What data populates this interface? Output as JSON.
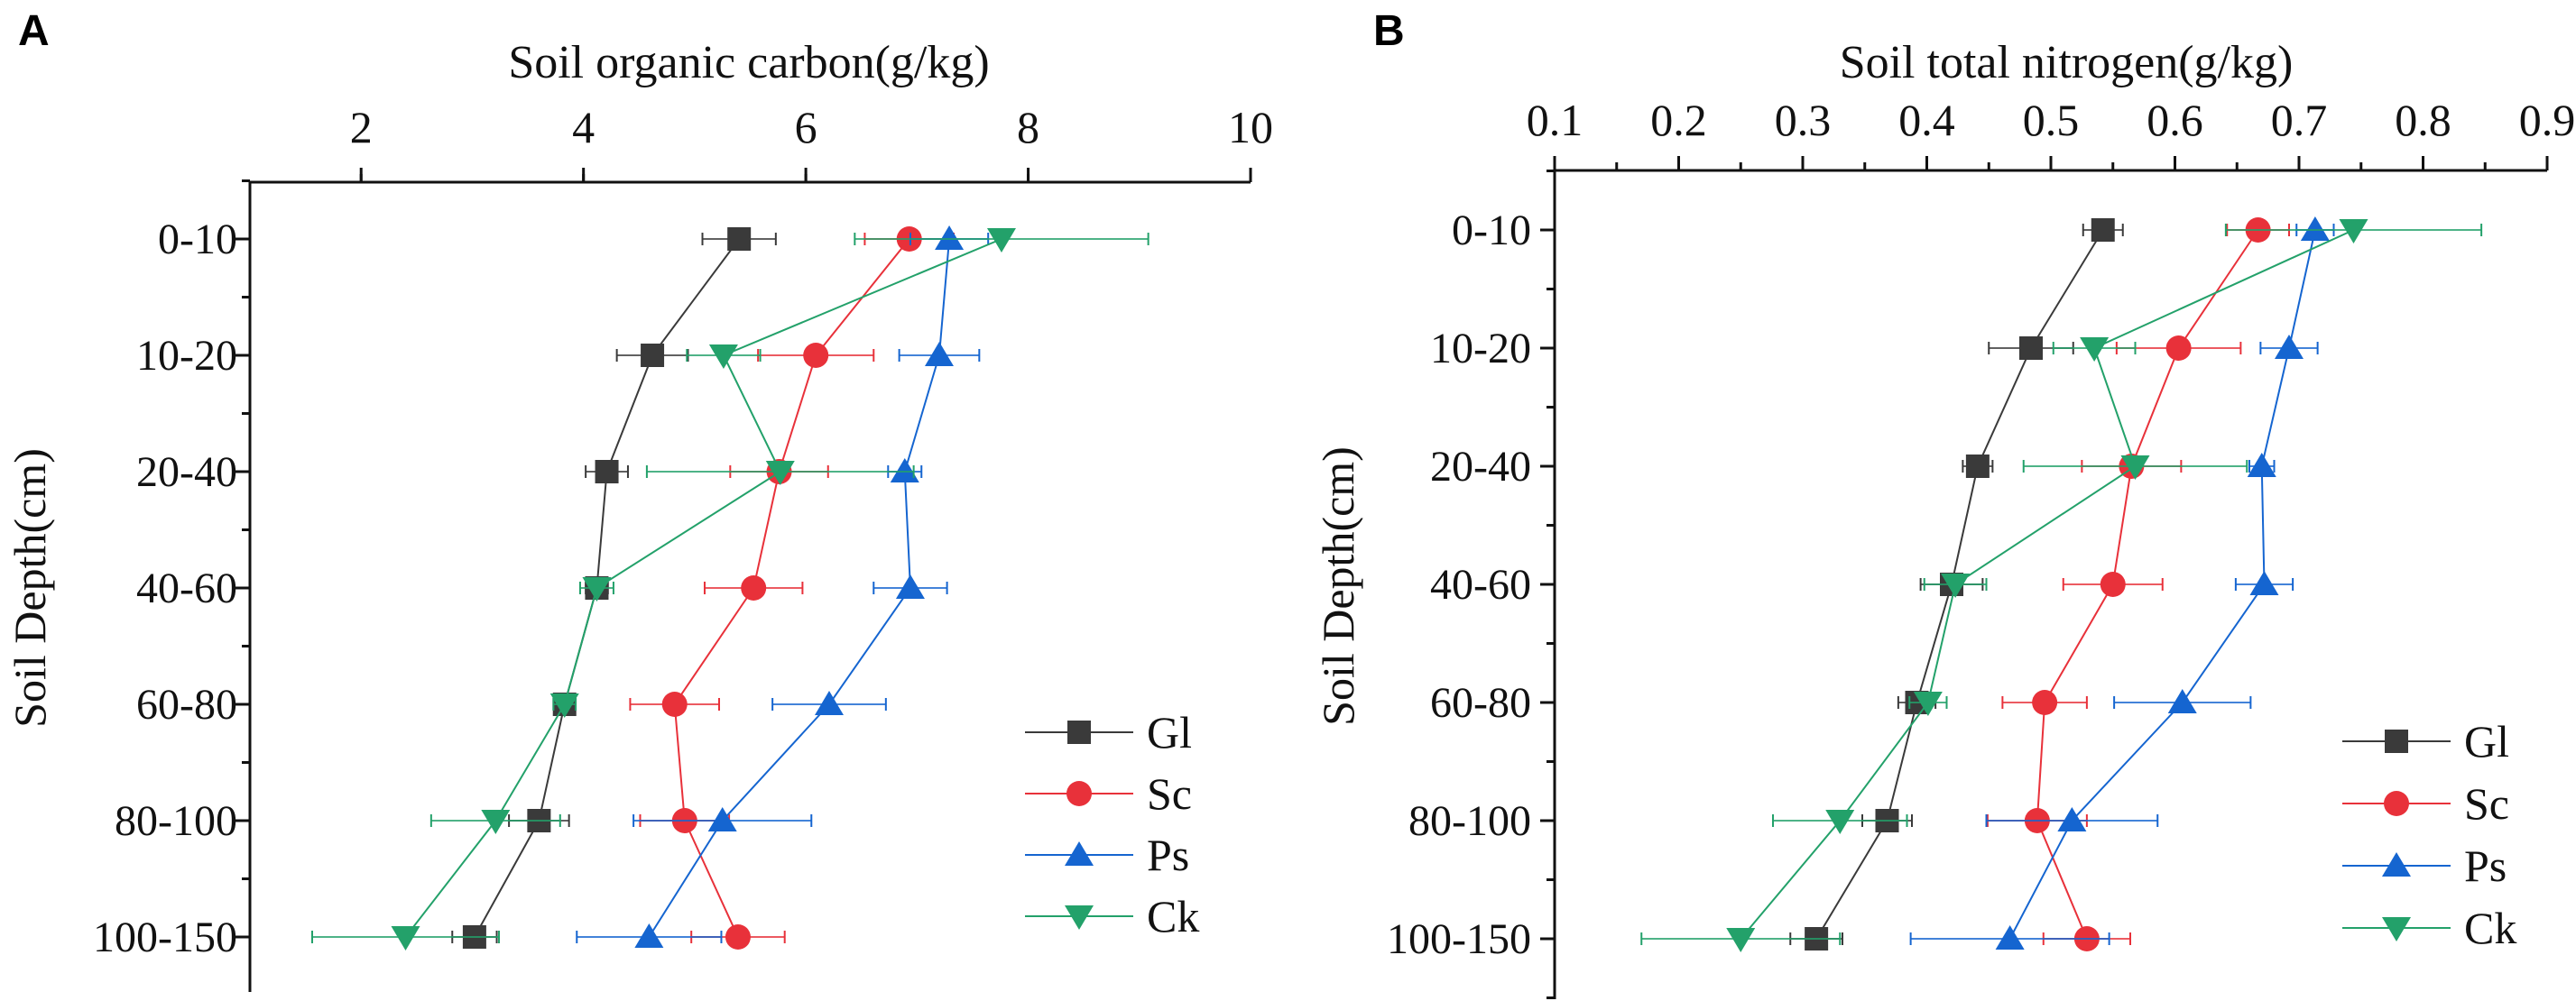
{
  "chart_data": [
    {
      "panel_label": "A",
      "type": "line",
      "title": "Soil organic carbon(g/kg)",
      "xlabel": "Soil organic carbon(g/kg)",
      "ylabel": "Soil Depth(cm)",
      "xlim": [
        1,
        10
      ],
      "xticks": [
        2,
        4,
        6,
        8,
        10
      ],
      "tick_labels": [
        "2",
        "4",
        "6",
        "8",
        "10"
      ],
      "categories": [
        "0-10",
        "10-20",
        "20-40",
        "40-60",
        "60-80",
        "80-100",
        "100-150"
      ],
      "legend_position": "bottom-right",
      "series": [
        {
          "name": "Gl",
          "marker": "square",
          "color": "#3a3a3a",
          "values": [
            5.4,
            4.62,
            4.21,
            4.12,
            3.83,
            3.6,
            3.02
          ],
          "errors": [
            0.33,
            0.32,
            0.19,
            0.1,
            0.1,
            0.27,
            0.2
          ]
        },
        {
          "name": "Sc",
          "marker": "circle",
          "color": "#e8313a",
          "values": [
            6.93,
            6.09,
            5.76,
            5.53,
            4.82,
            4.91,
            5.39
          ],
          "errors": [
            0.4,
            0.52,
            0.44,
            0.44,
            0.4,
            0.4,
            0.42
          ]
        },
        {
          "name": "Ps",
          "marker": "triangle-up",
          "color": "#1565d0",
          "values": [
            7.29,
            7.2,
            6.89,
            6.94,
            6.21,
            5.25,
            4.59
          ],
          "errors": [
            0.35,
            0.36,
            0.15,
            0.33,
            0.51,
            0.8,
            0.65
          ]
        },
        {
          "name": "Ck",
          "marker": "triangle-down",
          "color": "#23a16a",
          "values": [
            7.76,
            5.26,
            5.77,
            4.12,
            3.83,
            3.21,
            2.4
          ],
          "errors": [
            1.32,
            0.33,
            1.2,
            0.15,
            0.1,
            0.58,
            0.84
          ]
        }
      ]
    },
    {
      "panel_label": "B",
      "type": "line",
      "title": "Soil total nitrogen(g/kg)",
      "xlabel": "Soil total nitrogen(g/kg)",
      "ylabel": "Soil Depth(cm)",
      "xlim": [
        0.1,
        0.9
      ],
      "xticks": [
        0.1,
        0.2,
        0.3,
        0.4,
        0.5,
        0.6,
        0.7,
        0.8,
        0.9
      ],
      "tick_labels": [
        "0.1",
        "0.2",
        "0.3",
        "0.4",
        "0.5",
        "0.6",
        "0.7",
        "0.8",
        "0.9"
      ],
      "categories": [
        "0-10",
        "10-20",
        "20-40",
        "40-60",
        "60-80",
        "80-100",
        "100-150"
      ],
      "legend_position": "bottom-right",
      "series": [
        {
          "name": "Gl",
          "marker": "square",
          "color": "#3a3a3a",
          "values": [
            0.542,
            0.484,
            0.441,
            0.42,
            0.392,
            0.368,
            0.311
          ],
          "errors": [
            0.016,
            0.034,
            0.012,
            0.025,
            0.015,
            0.02,
            0.021
          ]
        },
        {
          "name": "Sc",
          "marker": "circle",
          "color": "#e8313a",
          "values": [
            0.667,
            0.603,
            0.565,
            0.55,
            0.495,
            0.489,
            0.529
          ],
          "errors": [
            0.025,
            0.05,
            0.04,
            0.04,
            0.034,
            0.04,
            0.035
          ]
        },
        {
          "name": "Ps",
          "marker": "triangle-up",
          "color": "#1565d0",
          "values": [
            0.713,
            0.692,
            0.67,
            0.672,
            0.606,
            0.517,
            0.467
          ],
          "errors": [
            0.015,
            0.023,
            0.01,
            0.023,
            0.055,
            0.069,
            0.08
          ]
        },
        {
          "name": "Ck",
          "marker": "triangle-down",
          "color": "#23a16a",
          "values": [
            0.744,
            0.535,
            0.568,
            0.423,
            0.401,
            0.33,
            0.25
          ],
          "errors": [
            0.103,
            0.033,
            0.09,
            0.025,
            0.015,
            0.054,
            0.08
          ]
        }
      ]
    }
  ]
}
